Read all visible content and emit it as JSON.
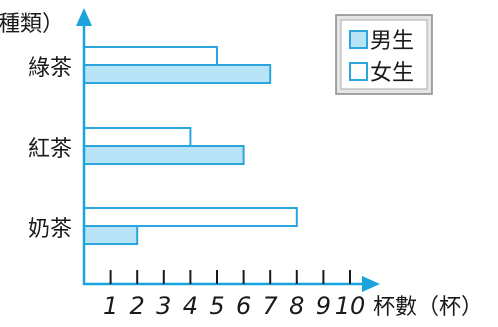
{
  "chart_data": {
    "type": "bar",
    "orientation": "horizontal",
    "categories": [
      "綠茶",
      "紅茶",
      "奶茶"
    ],
    "series": [
      {
        "name": "女生",
        "values": [
          5,
          4,
          8
        ],
        "color": "#ffffff"
      },
      {
        "name": "男生",
        "values": [
          7,
          6,
          2
        ],
        "color": "#b9e3f6"
      }
    ],
    "xlim": [
      0,
      10
    ],
    "x_ticks": [
      "1",
      "2",
      "3",
      "4",
      "5",
      "6",
      "7",
      "8",
      "9",
      "10"
    ],
    "xlabel": "杯數（杯）",
    "ylabel": "種類）",
    "grid": false,
    "legend_position": "top-right",
    "legend": [
      {
        "label": "男生",
        "filled": true
      },
      {
        "label": "女生",
        "filled": false
      }
    ],
    "colors": {
      "axis": "#1aa3dc",
      "bar_stroke": "#2aa6dc",
      "male_fill": "#b9e3f6",
      "legend_border": "#888888",
      "legend_bg": "#e6e6e6"
    }
  }
}
